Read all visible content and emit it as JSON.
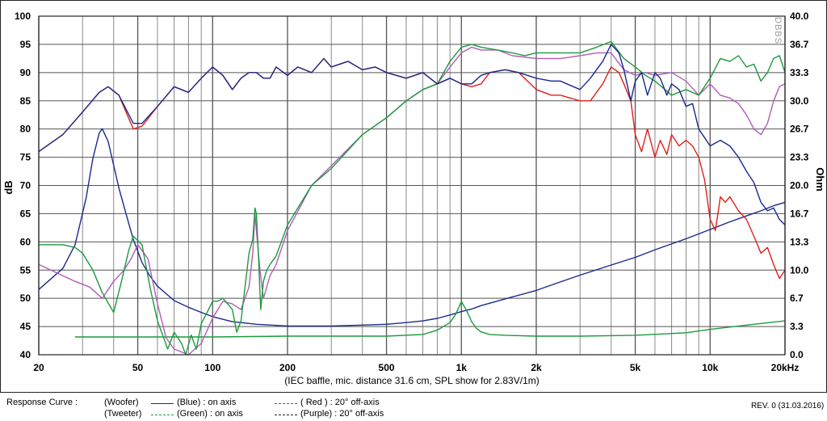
{
  "chart_data": {
    "type": "line",
    "x_scale": "log",
    "xlim": [
      20,
      20000
    ],
    "ylim_left": [
      40,
      100
    ],
    "ylim_right": [
      0,
      40
    ],
    "ylabel_left": "dB",
    "ylabel_right": "Ohm",
    "xlabel": "(IEC baffle, mic. distance 31.6 cm, SPL show for 2.83V/1m)",
    "x_tick_labels": [
      {
        "x": 20,
        "label": "20"
      },
      {
        "x": 50,
        "label": "50"
      },
      {
        "x": 100,
        "label": "100"
      },
      {
        "x": 200,
        "label": "200"
      },
      {
        "x": 500,
        "label": "500"
      },
      {
        "x": 1000,
        "label": "1k"
      },
      {
        "x": 2000,
        "label": "2k"
      },
      {
        "x": 5000,
        "label": "5k"
      },
      {
        "x": 10000,
        "label": "10k"
      },
      {
        "x": 20000,
        "label": "20kHz"
      }
    ],
    "y_left_ticks": [
      "100",
      "95",
      "90",
      "85",
      "80",
      "75",
      "70",
      "65",
      "60",
      "55",
      "50",
      "45",
      "40"
    ],
    "y_right_ticks": [
      "40.0",
      "36.7",
      "33.3",
      "30.0",
      "26.7",
      "23.3",
      "20.0",
      "16.7",
      "13.3",
      "10.0",
      "6.7",
      "3.3",
      "0.0"
    ],
    "watermark": "DBBS",
    "grid": true,
    "colors": {
      "blue": "#1a2a8c",
      "red": "#e0201c",
      "green": "#1c9a3c",
      "purple": "#b15cb8",
      "navy": "#1a2a8c"
    },
    "series": [
      {
        "name": "(Woofer) (Blue) : on axis",
        "axis": "left",
        "color": "#1a2a8c",
        "x": [
          20,
          25,
          30,
          35,
          38,
          42,
          48,
          52,
          60,
          70,
          80,
          90,
          100,
          110,
          120,
          130,
          140,
          150,
          160,
          170,
          180,
          200,
          220,
          250,
          280,
          300,
          350,
          400,
          450,
          500,
          600,
          700,
          800,
          900,
          1000,
          1100,
          1200,
          1300,
          1500,
          1700,
          2000,
          2300,
          2500,
          3000,
          3300,
          3700,
          4000,
          4300,
          4500,
          4800,
          5000,
          5300,
          5600,
          6000,
          6300,
          6700,
          7000,
          7500,
          8000,
          8500,
          9000,
          10000,
          11000,
          12000,
          13000,
          14000,
          15000,
          16000,
          17000,
          18000,
          19000,
          20000
        ],
        "y": [
          76,
          79,
          83,
          86.5,
          87.5,
          86,
          81,
          81,
          84,
          87.5,
          86.5,
          89,
          91,
          89.5,
          87,
          89,
          90,
          90,
          89,
          89,
          91,
          89.5,
          91,
          90,
          92.5,
          91,
          92,
          90.5,
          91,
          90,
          89,
          90,
          88,
          89,
          88,
          88,
          89.5,
          90,
          90.5,
          90,
          89,
          88.5,
          88.5,
          87,
          89,
          92,
          95,
          93.5,
          90.5,
          85,
          88.5,
          90,
          86,
          90,
          89,
          86,
          88,
          87,
          84,
          84.5,
          80,
          77,
          78,
          77,
          75,
          72.5,
          70.5,
          67,
          65.5,
          66,
          64,
          63
        ]
      },
      {
        "name": "(Red) : 20° off-axis",
        "axis": "left",
        "color": "#e0201c",
        "x": [
          20,
          25,
          30,
          35,
          38,
          42,
          48,
          52,
          60,
          70,
          80,
          90,
          100,
          110,
          120,
          130,
          140,
          150,
          160,
          170,
          180,
          200,
          220,
          250,
          280,
          300,
          350,
          400,
          450,
          500,
          600,
          700,
          800,
          900,
          1000,
          1100,
          1200,
          1300,
          1500,
          1700,
          2000,
          2300,
          2500,
          3000,
          3300,
          3700,
          4000,
          4300,
          4500,
          4800,
          5000,
          5300,
          5600,
          6000,
          6300,
          6700,
          7000,
          7500,
          8000,
          8500,
          9000,
          9500,
          10000,
          10500,
          11000,
          11500,
          12000,
          13000,
          14000,
          15000,
          16000,
          17000,
          18000,
          19000,
          20000
        ],
        "y": [
          76,
          79,
          83,
          86.5,
          87.5,
          86,
          80,
          80.5,
          84,
          87.5,
          86.5,
          89,
          91,
          89.5,
          87,
          89,
          90,
          90,
          89,
          89,
          91,
          89.5,
          91,
          90,
          92.5,
          91,
          92,
          90.5,
          91,
          90,
          89,
          90,
          88,
          89,
          88,
          87.5,
          88,
          90,
          90.5,
          90,
          87,
          86,
          86,
          85,
          85,
          88,
          91,
          90,
          88,
          85,
          79,
          76,
          80,
          75,
          78,
          75.5,
          79,
          77,
          78,
          77,
          75,
          71,
          64,
          62,
          68,
          67,
          68,
          65.5,
          64,
          61,
          58,
          59,
          56,
          53.5,
          55
        ]
      },
      {
        "name": "(Tweeter) (Green) : on axis",
        "axis": "left",
        "color": "#1c9a3c",
        "x": [
          20,
          25,
          28,
          30,
          33,
          36,
          40,
          43,
          46,
          48,
          52,
          56,
          60,
          66,
          70,
          75,
          78,
          82,
          86,
          90,
          95,
          100,
          105,
          110,
          115,
          120,
          125,
          130,
          135,
          140,
          145,
          148,
          150,
          153,
          156,
          160,
          165,
          170,
          180,
          200,
          250,
          300,
          400,
          500,
          600,
          700,
          800,
          900,
          1000,
          1100,
          1200,
          1400,
          1600,
          1800,
          2000,
          2500,
          3000,
          3500,
          4000,
          4500,
          5000,
          5500,
          6000,
          7000,
          8000,
          9000,
          10000,
          11000,
          12000,
          13000,
          14000,
          15000,
          16000,
          17000,
          18000,
          19000,
          20000
        ],
        "y": [
          59.5,
          59.5,
          59,
          58,
          55,
          51,
          47.5,
          53,
          58.5,
          61,
          59.5,
          52,
          46,
          41,
          44,
          42,
          40,
          43.5,
          41,
          45.5,
          47.5,
          49.5,
          49.5,
          50,
          49,
          48,
          44,
          46,
          52,
          58,
          60.5,
          66,
          65,
          57,
          48,
          53,
          55,
          56,
          57.5,
          63,
          70,
          73,
          79,
          82,
          85,
          87,
          88,
          92,
          94.5,
          95,
          94.5,
          94,
          93.5,
          93,
          93.5,
          93.5,
          93.5,
          94.5,
          95.5,
          92.5,
          91,
          89.5,
          88.5,
          86,
          87,
          86,
          89,
          92.5,
          92,
          93,
          91,
          91.5,
          88.5,
          90,
          92.5,
          93,
          90
        ]
      },
      {
        "name": "(Purple) : 20° off-axis",
        "axis": "left",
        "color": "#b15cb8",
        "x": [
          20,
          25,
          28,
          32,
          36,
          40,
          44,
          47,
          50,
          55,
          60,
          65,
          70,
          80,
          90,
          100,
          110,
          120,
          130,
          140,
          145,
          148,
          150,
          155,
          160,
          165,
          170,
          180,
          200,
          250,
          300,
          400,
          500,
          600,
          700,
          800,
          900,
          1000,
          1100,
          1200,
          1400,
          1600,
          2000,
          2500,
          3000,
          3500,
          4000,
          4500,
          5000,
          5500,
          6000,
          7000,
          8000,
          9000,
          10000,
          11000,
          12000,
          13000,
          14000,
          15000,
          16000,
          17000,
          18000,
          19000,
          20000
        ],
        "y": [
          56,
          54,
          53,
          52,
          50,
          53,
          55,
          57,
          59.5,
          57,
          49,
          43,
          41,
          40,
          42,
          46.5,
          49.5,
          49,
          48,
          52,
          58,
          65,
          62,
          55,
          50,
          52,
          54,
          56,
          62,
          70,
          73.5,
          79,
          82,
          85,
          87,
          88,
          91,
          93.5,
          94.5,
          94,
          94,
          93,
          92.5,
          92.5,
          93,
          93.5,
          93.5,
          90.5,
          89.5,
          90,
          89.5,
          90,
          88.5,
          86,
          88,
          86,
          85.5,
          84.5,
          82.5,
          80,
          79,
          81,
          85,
          87.5,
          88
        ]
      },
      {
        "name": "Woofer impedance",
        "axis": "right",
        "color": "#1a2a8c",
        "x": [
          20,
          25,
          28,
          31,
          33,
          35,
          36,
          38,
          40,
          42,
          45,
          48,
          52,
          56,
          60,
          70,
          80,
          90,
          100,
          120,
          150,
          200,
          250,
          300,
          400,
          500,
          600,
          700,
          800,
          900,
          1000,
          1100,
          1200,
          1500,
          2000,
          2500,
          3000,
          4000,
          5000,
          6000,
          8000,
          10000,
          12000,
          14000,
          16000,
          18000,
          20000
        ],
        "y": [
          7.7,
          10.2,
          13,
          18.5,
          23.2,
          26.2,
          26.7,
          25.2,
          22.4,
          19.7,
          16.5,
          13.6,
          10.9,
          9.3,
          8.1,
          6.4,
          5.6,
          5.0,
          4.5,
          3.9,
          3.6,
          3.4,
          3.4,
          3.4,
          3.5,
          3.6,
          3.8,
          4.0,
          4.3,
          4.7,
          5.1,
          5.4,
          5.8,
          6.6,
          7.6,
          8.6,
          9.4,
          10.6,
          11.5,
          12.4,
          13.7,
          14.8,
          15.7,
          16.4,
          17.0,
          17.6,
          18.0
        ]
      },
      {
        "name": "Tweeter impedance",
        "axis": "right",
        "color": "#1c9a3c",
        "x": [
          28,
          100,
          200,
          500,
          700,
          800,
          900,
          950,
          1000,
          1050,
          1100,
          1150,
          1200,
          1300,
          1500,
          2000,
          3000,
          5000,
          8000,
          10000,
          15000,
          20000
        ],
        "y": [
          2.1,
          2.1,
          2.2,
          2.2,
          2.4,
          2.9,
          3.8,
          4.8,
          6.3,
          5.2,
          3.9,
          3.1,
          2.7,
          2.4,
          2.3,
          2.2,
          2.2,
          2.3,
          2.6,
          3.0,
          3.6,
          4.0
        ]
      }
    ]
  },
  "legend": {
    "title": "Response Curve :",
    "woofer": "(Woofer)",
    "tweeter": "(Tweeter)",
    "blue": "(Blue)  : on axis",
    "green": "(Green) : on axis",
    "red": "( Red ) : 20° off-axis",
    "purple": "(Purple) : 20° off-axis",
    "revision": "REV. 0 (31.03.2016)"
  }
}
